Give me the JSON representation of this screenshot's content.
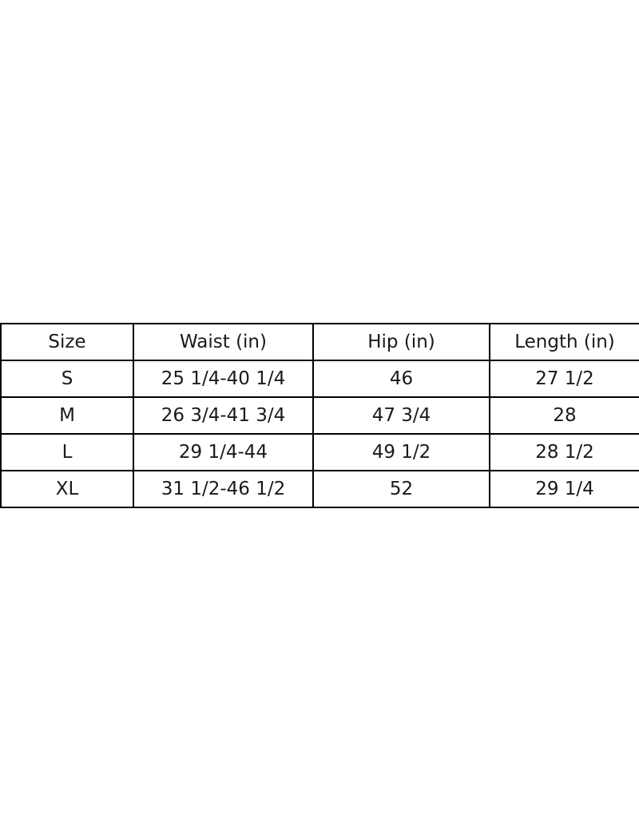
{
  "chart_data": {
    "type": "table",
    "columns": [
      "Size",
      "Waist (in)",
      "Hip (in)",
      "Length (in)"
    ],
    "rows": [
      [
        "S",
        "25 1/4-40 1/4",
        "46",
        "27 1/2"
      ],
      [
        "M",
        "26 3/4-41 3/4",
        "47 3/4",
        "28"
      ],
      [
        "L",
        "29 1/4-44",
        "49 1/2",
        "28 1/2"
      ],
      [
        "XL",
        "31 1/2-46 1/2",
        "52",
        "29 1/4"
      ]
    ],
    "colors": {
      "border": "#000000",
      "text": "#1a1a1a",
      "background": "#ffffff"
    }
  }
}
